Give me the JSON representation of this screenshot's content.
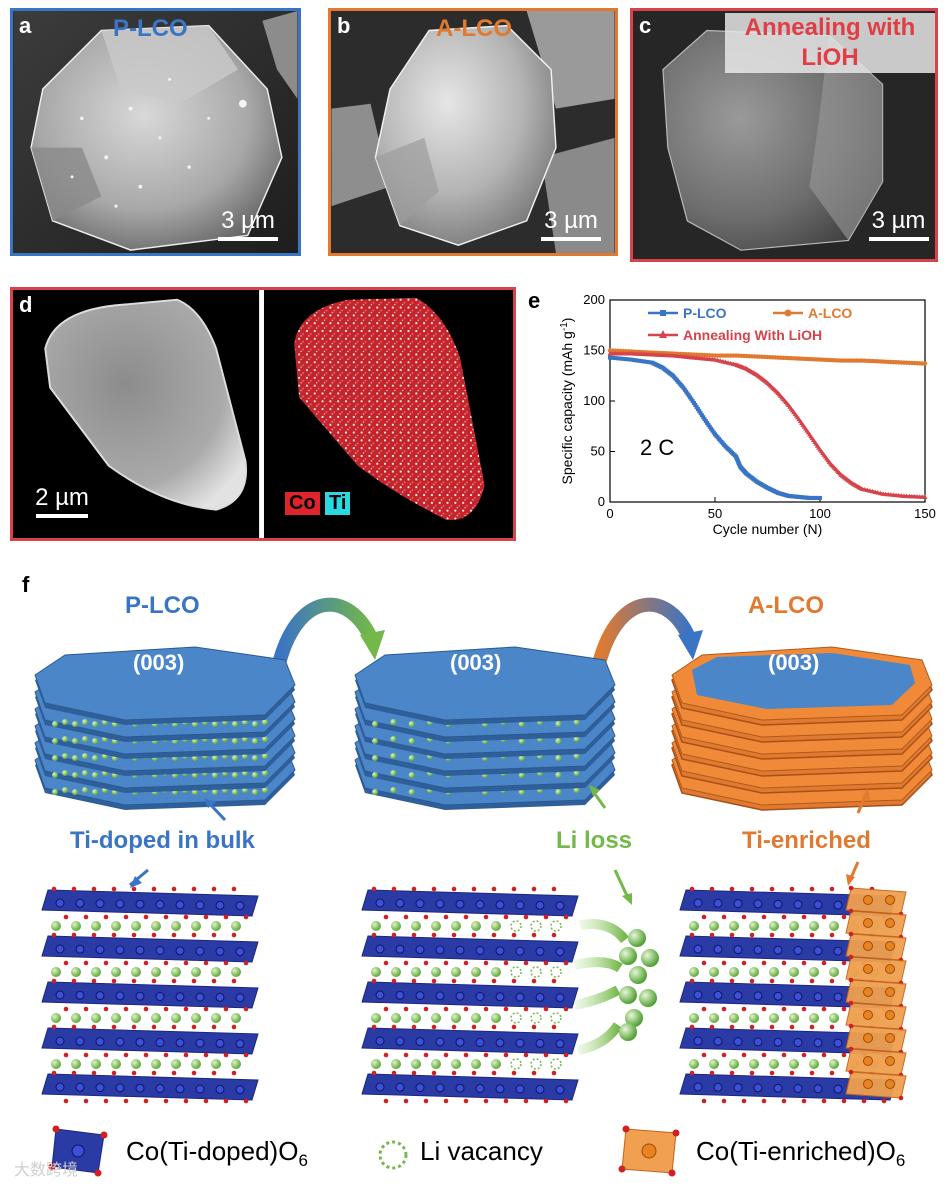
{
  "panels": {
    "a": {
      "letter": "a",
      "title": "P-LCO",
      "scale": "3 µm",
      "border": "#3a74c4",
      "title_color": "#3a74c4"
    },
    "b": {
      "letter": "b",
      "title": "A-LCO",
      "scale": "3 µm",
      "border": "#e07a30",
      "title_color": "#e07a30"
    },
    "c": {
      "letter": "c",
      "title_line1": "Annealing with",
      "title_line2": "LiOH",
      "scale": "3 µm",
      "border": "#d6434a",
      "title_color": "#e03d44"
    },
    "d": {
      "letter": "d",
      "scale": "2 µm",
      "border": "#d6434a",
      "label_co": "Co",
      "label_ti": "Ti"
    },
    "e": {
      "letter": "e",
      "annotation": "2 C"
    },
    "f": {
      "letter": "f",
      "label_plco": "P-LCO",
      "label_alco": "A-LCO",
      "facet": "(003)",
      "ti_doped": "Ti-doped in bulk",
      "li_loss": "Li loss",
      "ti_enriched": "Ti-enriched",
      "legend_co_doped": "Co(Ti-doped)O",
      "legend_li_vac": "Li vacancy",
      "legend_co_enriched": "Co(Ti-enriched)O",
      "legend_sub": "6"
    }
  },
  "watermark": "大数跨境",
  "colors": {
    "blue": "#3a74c4",
    "orange": "#e07a30",
    "red": "#d6434a",
    "green": "#74b84a",
    "navy": "#2b3ba6"
  },
  "chart_data": {
    "type": "line",
    "xlabel": "Cycle number (N)",
    "ylabel": "Specific capacity (mAh g",
    "ylabel_sup": "-1",
    "ylabel_close": ")",
    "xlim": [
      0,
      150
    ],
    "ylim": [
      0,
      200
    ],
    "xticks": [
      0,
      50,
      100,
      150
    ],
    "yticks": [
      0,
      50,
      100,
      150,
      200
    ],
    "series": [
      {
        "name": "P-LCO",
        "color": "#3a74c4",
        "marker": "square",
        "x": [
          0,
          10,
          20,
          25,
          30,
          35,
          40,
          45,
          50,
          55,
          60,
          62,
          65,
          70,
          75,
          80,
          85,
          90,
          95,
          100
        ],
        "y": [
          143,
          141,
          138,
          133,
          125,
          113,
          98,
          82,
          67,
          55,
          45,
          35,
          28,
          20,
          14,
          9,
          6,
          5,
          4,
          4
        ]
      },
      {
        "name": "A-LCO",
        "color": "#e07a30",
        "marker": "circle",
        "x": [
          0,
          10,
          20,
          30,
          40,
          50,
          60,
          70,
          80,
          90,
          100,
          110,
          120,
          130,
          140,
          150
        ],
        "y": [
          150,
          149,
          148,
          147,
          146,
          145,
          145,
          144,
          143,
          142,
          141,
          140,
          140,
          139,
          138,
          137
        ]
      },
      {
        "name": "Annealing With LiOH",
        "color": "#d6434a",
        "marker": "triangle",
        "x": [
          0,
          10,
          20,
          30,
          40,
          50,
          60,
          65,
          70,
          75,
          80,
          85,
          90,
          95,
          100,
          105,
          110,
          115,
          120,
          130,
          140,
          150
        ],
        "y": [
          147,
          147,
          146,
          145,
          143,
          141,
          136,
          132,
          126,
          118,
          108,
          96,
          82,
          67,
          52,
          38,
          27,
          19,
          13,
          8,
          6,
          5
        ]
      }
    ]
  }
}
